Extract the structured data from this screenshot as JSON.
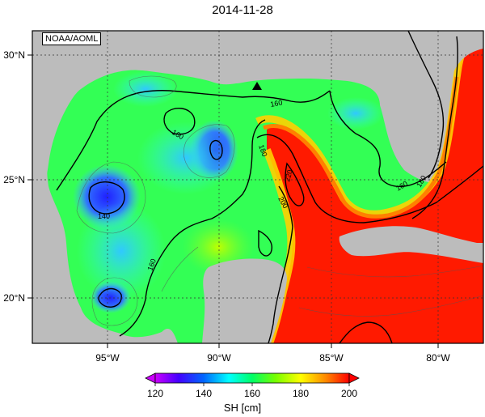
{
  "title": "2014-11-28",
  "credit": "NOAA/AOML",
  "map": {
    "lon_ticks": [
      "95°W",
      "90°W",
      "85°W",
      "80°W"
    ],
    "lat_ticks": [
      "30°N",
      "25°N",
      "20°N"
    ],
    "contour_labels": [
      "160",
      "160",
      "160",
      "180",
      "180",
      "140",
      "160",
      "220",
      "200",
      "160",
      "160",
      "200"
    ],
    "marker": "triangle-marker"
  },
  "colorbar": {
    "ticks": [
      "120",
      "140",
      "160",
      "180",
      "200"
    ],
    "label": "SH [cm]",
    "stops": [
      "#cc00ff",
      "#4400ff",
      "#0066ff",
      "#00ffff",
      "#00ff66",
      "#77ff00",
      "#ffff00",
      "#ff8800",
      "#ff0000"
    ]
  },
  "colors": {
    "land": "#bcbcbc",
    "warm": "#ff1a00",
    "cool": "#1a4dff",
    "mid": "#33ff55"
  }
}
